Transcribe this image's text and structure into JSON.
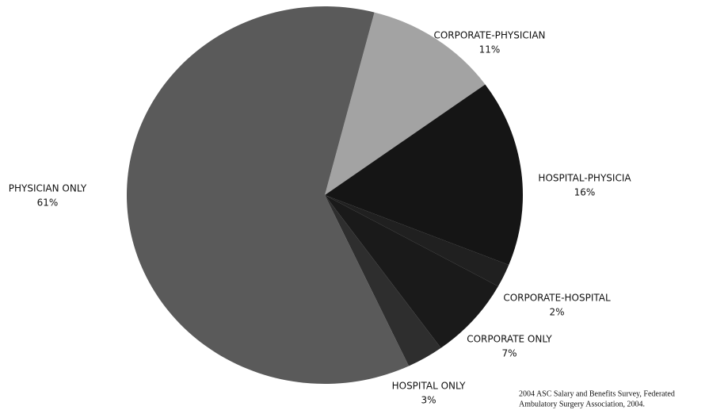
{
  "chart_data": {
    "type": "pie",
    "categories": [
      "CORPORATE-PHYSICIAN",
      "HOSPITAL-PHYSICIA",
      "CORPORATE-HOSPITAL",
      "CORPORATE ONLY",
      "HOSPITAL ONLY",
      "PHYSICIAN ONLY"
    ],
    "values": [
      11,
      16,
      2,
      7,
      3,
      61
    ],
    "value_labels": [
      "11%",
      "16%",
      "2%",
      "7%",
      "3%",
      "61%"
    ],
    "colors": [
      "#a3a3a3",
      "#151515",
      "#202020",
      "#1a1a1a",
      "#2e2e2e",
      "#5a5a5a"
    ],
    "note": [
      "2004 ASC Salary and Benefits Survey, Federated",
      "Ambulatory Surgery Association, 2004."
    ]
  }
}
